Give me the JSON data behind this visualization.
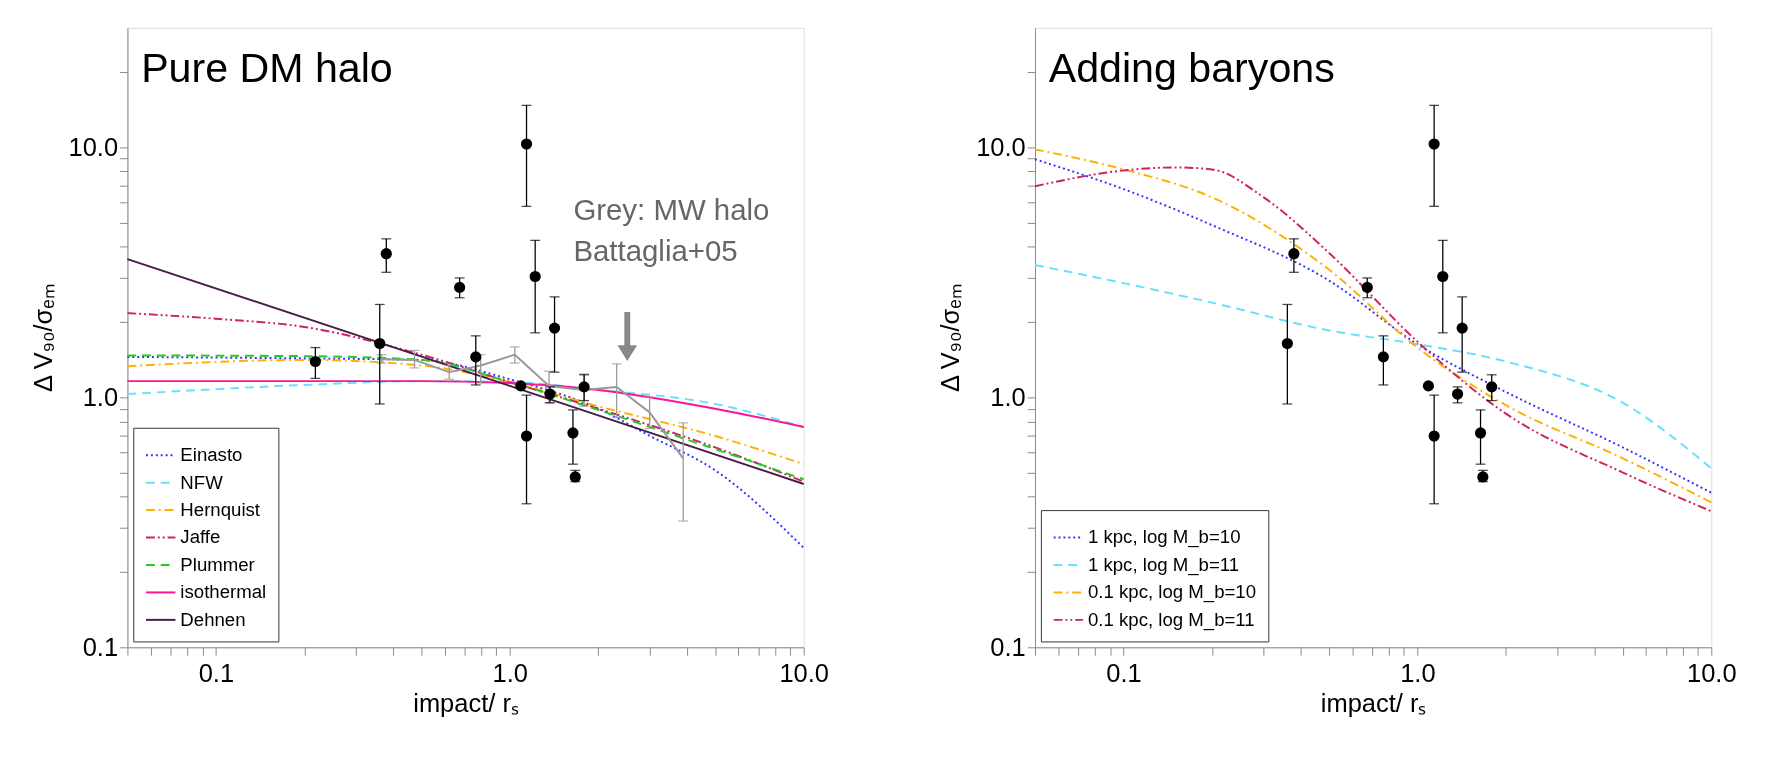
{
  "chart_data": [
    {
      "type": "line",
      "title": "Pure DM halo",
      "xlabel": "impact/ rₛ",
      "ylabel": "Δ V₉₀/σₑₘ",
      "log": "xy",
      "grid": false,
      "legend": "bottom left",
      "xlim": [
        0.05,
        10
      ],
      "ylim": [
        0.1,
        30
      ],
      "xticks": [
        {
          "value": 0.05,
          "label": null
        },
        {
          "value": 0.06,
          "label": null
        },
        {
          "value": 0.07,
          "label": null
        },
        {
          "value": 0.08,
          "label": null
        },
        {
          "value": 0.09,
          "label": null
        },
        {
          "value": 0.1,
          "label": "0.1"
        },
        {
          "value": 0.2,
          "label": null
        },
        {
          "value": 0.3,
          "label": null
        },
        {
          "value": 0.4,
          "label": null
        },
        {
          "value": 0.5,
          "label": null
        },
        {
          "value": 0.6,
          "label": null
        },
        {
          "value": 0.7,
          "label": null
        },
        {
          "value": 0.8,
          "label": null
        },
        {
          "value": 0.9,
          "label": null
        },
        {
          "value": 1,
          "label": "1.0"
        },
        {
          "value": 2,
          "label": null
        },
        {
          "value": 3,
          "label": null
        },
        {
          "value": 4,
          "label": null
        },
        {
          "value": 5,
          "label": null
        },
        {
          "value": 6,
          "label": null
        },
        {
          "value": 7,
          "label": null
        },
        {
          "value": 8,
          "label": null
        },
        {
          "value": 9,
          "label": null
        },
        {
          "value": 10,
          "label": "10.0"
        }
      ],
      "yticks": [
        {
          "value": 0.1,
          "label": "0.1"
        },
        {
          "value": 0.2,
          "label": null
        },
        {
          "value": 0.3,
          "label": null
        },
        {
          "value": 0.4,
          "label": null
        },
        {
          "value": 0.5,
          "label": null
        },
        {
          "value": 0.6,
          "label": null
        },
        {
          "value": 0.7,
          "label": null
        },
        {
          "value": 0.8,
          "label": null
        },
        {
          "value": 0.9,
          "label": null
        },
        {
          "value": 1,
          "label": "1.0"
        },
        {
          "value": 2,
          "label": null
        },
        {
          "value": 3,
          "label": null
        },
        {
          "value": 4,
          "label": null
        },
        {
          "value": 5,
          "label": null
        },
        {
          "value": 6,
          "label": null
        },
        {
          "value": 7,
          "label": null
        },
        {
          "value": 8,
          "label": null
        },
        {
          "value": 9,
          "label": null
        },
        {
          "value": 10,
          "label": "10.0"
        },
        {
          "value": 20,
          "label": null
        }
      ],
      "series": [
        {
          "name": "Einasto",
          "type": "line",
          "color": "#3333ff",
          "line_style": "dotted",
          "x": [
            0.05,
            0.2,
            0.5,
            1,
            2,
            3,
            5,
            10
          ],
          "values": [
            1.45,
            1.43,
            1.41,
            1.18,
            0.9,
            0.7,
            0.51,
            0.25
          ]
        },
        {
          "name": "NFW",
          "type": "line",
          "color": "#66e0ff",
          "line_style": "dashed",
          "x": [
            0.05,
            0.2,
            0.5,
            1,
            2,
            5,
            10
          ],
          "values": [
            1.03,
            1.12,
            1.16,
            1.15,
            1.07,
            0.94,
            0.76
          ]
        },
        {
          "name": "Hernquist",
          "type": "line",
          "color": "#ffb000",
          "line_style": "dashdot",
          "x": [
            0.05,
            0.2,
            0.5,
            1,
            2,
            5,
            10
          ],
          "values": [
            1.33,
            1.41,
            1.34,
            1.15,
            0.92,
            0.7,
            0.54
          ]
        },
        {
          "name": "Jaffe",
          "type": "line",
          "color": "#cc2266",
          "line_style": "dashdotdot",
          "x": [
            0.05,
            0.1,
            0.2,
            0.5,
            1,
            2,
            5,
            10
          ],
          "values": [
            2.17,
            2.06,
            1.91,
            1.48,
            1.15,
            0.9,
            0.63,
            0.46
          ]
        },
        {
          "name": "Plummer",
          "type": "line",
          "color": "#22cc22",
          "line_style": "dashed",
          "x": [
            0.05,
            0.2,
            0.5,
            1,
            2,
            5,
            10
          ],
          "values": [
            1.47,
            1.46,
            1.41,
            1.15,
            0.89,
            0.62,
            0.47
          ]
        },
        {
          "name": "isothermal",
          "type": "line",
          "color": "#ff1493",
          "line_style": "solid",
          "x": [
            0.05,
            0.5,
            1,
            2,
            5,
            10
          ],
          "values": [
            1.16,
            1.16,
            1.14,
            1.07,
            0.9,
            0.76
          ]
        },
        {
          "name": "Dehnen",
          "type": "line",
          "color": "#4a1a4a",
          "line_style": "solid",
          "x": [
            0.05,
            1,
            10
          ],
          "values": [
            3.57,
            1.11,
            0.45
          ]
        },
        {
          "type": "line",
          "color": "#999999",
          "line_style": "solid",
          "marker": "none",
          "x": [
            0.366,
            0.474,
            0.622,
            0.796,
            1.04,
            1.36,
            1.79,
            2.31,
            2.99,
            3.89
          ],
          "values": [
            1.42,
            1.41,
            1.26,
            1.34,
            1.48,
            1.11,
            1.07,
            1.1,
            0.87,
            0.57
          ],
          "errors": [
            [
              1.37,
              1.48
            ],
            [
              1.31,
              1.54
            ],
            [
              1.18,
              1.34
            ],
            [
              1.14,
              1.48
            ],
            [
              1.37,
              1.59
            ],
            [
              0.95,
              1.27
            ],
            [
              0.92,
              1.24
            ],
            [
              0.83,
              1.36
            ],
            [
              0.75,
              1.0
            ],
            [
              0.32,
              0.79
            ]
          ]
        },
        {
          "type": "scatter",
          "color": "#000000",
          "marker": "circle",
          "x": [
            0.218,
            0.361,
            0.38,
            0.675,
            0.766,
            1.14,
            1.09,
            1.14,
            1.22,
            1.37,
            1.42,
            1.64,
            1.67,
            1.79
          ],
          "values": [
            1.39,
            1.64,
            3.75,
            2.75,
            1.45,
            10.3,
            1.11,
            0.7,
            3.04,
            1.03,
            1.89,
            0.72,
            0.48,
            1.1
          ],
          "errors": [
            [
              1.19,
              1.58
            ],
            [
              0.94,
              2.35
            ],
            [
              3.16,
              4.3
            ],
            [
              2.5,
              3.0
            ],
            [
              1.12,
              1.76
            ],
            [
              5.8,
              14.7
            ],
            null,
            [
              0.375,
              1.02
            ],
            [
              1.81,
              4.24
            ],
            [
              0.95,
              1.1
            ],
            [
              1.26,
              2.52
            ],
            [
              0.54,
              0.89
            ],
            [
              0.46,
              0.51
            ],
            [
              0.97,
              1.23
            ]
          ]
        }
      ],
      "annotations": [
        "Grey: MW halo\nBattaglia+05"
      ]
    },
    {
      "type": "line",
      "title": "Adding baryons",
      "xlabel": "impact/ rₛ",
      "ylabel": "Δ V₉₀/σₑₘ",
      "log": "xy",
      "grid": false,
      "legend": "bottom left",
      "xlim": [
        0.05,
        10
      ],
      "ylim": [
        0.1,
        30
      ],
      "xticks": [
        {
          "value": 0.05,
          "label": null
        },
        {
          "value": 0.06,
          "label": null
        },
        {
          "value": 0.07,
          "label": null
        },
        {
          "value": 0.08,
          "label": null
        },
        {
          "value": 0.09,
          "label": null
        },
        {
          "value": 0.1,
          "label": "0.1"
        },
        {
          "value": 0.2,
          "label": null
        },
        {
          "value": 0.3,
          "label": null
        },
        {
          "value": 0.4,
          "label": null
        },
        {
          "value": 0.5,
          "label": null
        },
        {
          "value": 0.6,
          "label": null
        },
        {
          "value": 0.7,
          "label": null
        },
        {
          "value": 0.8,
          "label": null
        },
        {
          "value": 0.9,
          "label": null
        },
        {
          "value": 1,
          "label": "1.0"
        },
        {
          "value": 2,
          "label": null
        },
        {
          "value": 3,
          "label": null
        },
        {
          "value": 4,
          "label": null
        },
        {
          "value": 5,
          "label": null
        },
        {
          "value": 6,
          "label": null
        },
        {
          "value": 7,
          "label": null
        },
        {
          "value": 8,
          "label": null
        },
        {
          "value": 9,
          "label": null
        },
        {
          "value": 10,
          "label": "10.0"
        }
      ],
      "yticks": [
        {
          "value": 0.1,
          "label": "0.1"
        },
        {
          "value": 0.2,
          "label": null
        },
        {
          "value": 0.3,
          "label": null
        },
        {
          "value": 0.4,
          "label": null
        },
        {
          "value": 0.5,
          "label": null
        },
        {
          "value": 0.6,
          "label": null
        },
        {
          "value": 0.7,
          "label": null
        },
        {
          "value": 0.8,
          "label": null
        },
        {
          "value": 0.9,
          "label": null
        },
        {
          "value": 1,
          "label": "1.0"
        },
        {
          "value": 2,
          "label": null
        },
        {
          "value": 3,
          "label": null
        },
        {
          "value": 4,
          "label": null
        },
        {
          "value": 5,
          "label": null
        },
        {
          "value": 6,
          "label": null
        },
        {
          "value": 7,
          "label": null
        },
        {
          "value": 8,
          "label": null
        },
        {
          "value": 9,
          "label": null
        },
        {
          "value": 10,
          "label": "10.0"
        },
        {
          "value": 20,
          "label": null
        }
      ],
      "series": [
        {
          "name": "1 kpc, log M_b=10",
          "type": "line",
          "color": "#3333ff",
          "line_style": "dotted",
          "x": [
            0.05,
            0.1,
            0.2,
            0.5,
            1,
            2,
            5,
            10
          ],
          "values": [
            8.95,
            6.8,
            4.88,
            2.93,
            1.63,
            1.05,
            0.63,
            0.415
          ]
        },
        {
          "name": "1 kpc, log M_b=11",
          "type": "line",
          "color": "#66e0ff",
          "line_style": "dashed",
          "x": [
            0.05,
            0.1,
            0.2,
            0.5,
            1,
            2,
            5,
            10
          ],
          "values": [
            3.38,
            2.86,
            2.39,
            1.85,
            1.63,
            1.39,
            0.95,
            0.52
          ]
        },
        {
          "name": "0.1 kpc, log M_b=10",
          "type": "line",
          "color": "#ffb000",
          "line_style": "dashdot",
          "x": [
            0.05,
            0.1,
            0.2,
            0.5,
            1,
            2,
            5,
            10
          ],
          "values": [
            9.8,
            8.15,
            6.3,
            3.24,
            1.58,
            0.93,
            0.57,
            0.38
          ]
        },
        {
          "name": "0.1 kpc, log M_b=11",
          "type": "line",
          "color": "#cc2266",
          "line_style": "dashdotdot",
          "x": [
            0.05,
            0.1,
            0.15,
            0.2,
            0.3,
            0.5,
            1,
            2,
            5,
            10
          ],
          "values": [
            6.98,
            8.07,
            8.3,
            8.15,
            6.3,
            3.78,
            1.67,
            0.86,
            0.5,
            0.35
          ]
        },
        {
          "type": "scatter",
          "color": "#000000",
          "marker": "circle",
          "x": [
            0.361,
            0.38,
            0.675,
            0.766,
            1.14,
            1.09,
            1.14,
            1.22,
            1.37,
            1.42,
            1.64,
            1.67,
            1.79
          ],
          "values": [
            1.64,
            3.75,
            2.75,
            1.45,
            10.3,
            1.11,
            0.7,
            3.04,
            1.03,
            1.89,
            0.72,
            0.48,
            1.1
          ],
          "errors": [
            [
              0.94,
              2.35
            ],
            [
              3.16,
              4.3
            ],
            [
              2.5,
              3.0
            ],
            [
              1.12,
              1.76
            ],
            [
              5.8,
              14.7
            ],
            null,
            [
              0.375,
              1.02
            ],
            [
              1.81,
              4.24
            ],
            [
              0.95,
              1.1
            ],
            [
              1.26,
              2.52
            ],
            [
              0.54,
              0.89
            ],
            [
              0.46,
              0.51
            ],
            [
              0.97,
              1.23
            ]
          ]
        }
      ]
    }
  ]
}
